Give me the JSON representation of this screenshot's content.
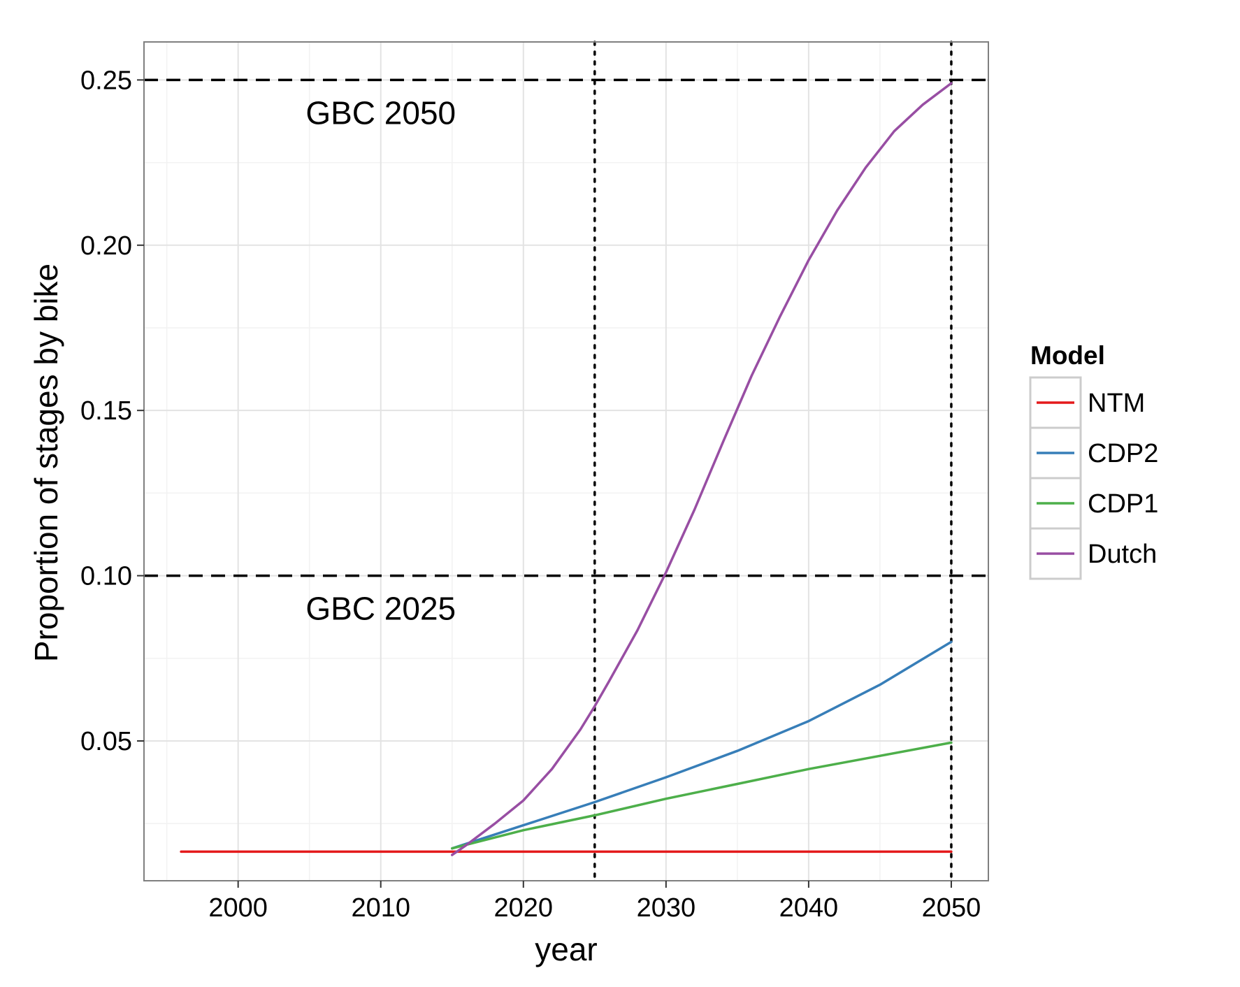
{
  "chart_data": {
    "type": "line",
    "xlabel": "year",
    "ylabel": "Proportion of stages by bike",
    "xlim": [
      1993.4,
      2052.6
    ],
    "ylim": [
      0.0077,
      0.2615
    ],
    "x_ticks": [
      2000,
      2010,
      2020,
      2030,
      2040,
      2050
    ],
    "x_tick_labels": [
      "2000",
      "2010",
      "2020",
      "2030",
      "2040",
      "2050"
    ],
    "y_ticks": [
      0.05,
      0.1,
      0.15,
      0.2,
      0.25
    ],
    "y_tick_labels": [
      "0.05",
      "0.10",
      "0.15",
      "0.20",
      "0.25"
    ],
    "grid": true,
    "legend": {
      "title": "Model",
      "position": "right",
      "entries": [
        "NTM",
        "CDP2",
        "CDP1",
        "Dutch"
      ]
    },
    "reference_lines": [
      {
        "orientation": "horizontal",
        "value": 0.25,
        "style": "dashed",
        "label": "GBC 2050",
        "label_x": 2010
      },
      {
        "orientation": "horizontal",
        "value": 0.1,
        "style": "dashed",
        "label": "GBC 2025",
        "label_x": 2010
      },
      {
        "orientation": "vertical",
        "value": 2025,
        "style": "dotted"
      },
      {
        "orientation": "vertical",
        "value": 2050,
        "style": "dotted"
      }
    ],
    "series": [
      {
        "name": "NTM",
        "color": "#e41a1c",
        "x": [
          1996,
          2000,
          2005,
          2010,
          2015,
          2020,
          2025,
          2030,
          2035,
          2040,
          2045,
          2050
        ],
        "values": [
          0.0165,
          0.0165,
          0.0165,
          0.0165,
          0.0165,
          0.0165,
          0.0165,
          0.0165,
          0.0165,
          0.0165,
          0.0165,
          0.0165
        ]
      },
      {
        "name": "CDP2",
        "color": "#377eb8",
        "x": [
          2015,
          2020,
          2025,
          2030,
          2035,
          2040,
          2045,
          2050
        ],
        "values": [
          0.0175,
          0.0245,
          0.0315,
          0.039,
          0.047,
          0.056,
          0.067,
          0.08
        ]
      },
      {
        "name": "CDP1",
        "color": "#4daf4a",
        "x": [
          2015,
          2020,
          2025,
          2030,
          2035,
          2040,
          2045,
          2050
        ],
        "values": [
          0.0175,
          0.023,
          0.0275,
          0.0325,
          0.037,
          0.0415,
          0.0455,
          0.0495
        ]
      },
      {
        "name": "Dutch",
        "color": "#984ea3",
        "x": [
          2015,
          2016,
          2018,
          2020,
          2022,
          2024,
          2025,
          2026,
          2028,
          2030,
          2032,
          2034,
          2036,
          2038,
          2040,
          2042,
          2044,
          2046,
          2048,
          2050
        ],
        "values": [
          0.0155,
          0.0185,
          0.025,
          0.032,
          0.0415,
          0.0535,
          0.0605,
          0.068,
          0.0835,
          0.101,
          0.12,
          0.1405,
          0.1605,
          0.1785,
          0.1955,
          0.2105,
          0.2235,
          0.2345,
          0.2425,
          0.249
        ]
      }
    ]
  }
}
